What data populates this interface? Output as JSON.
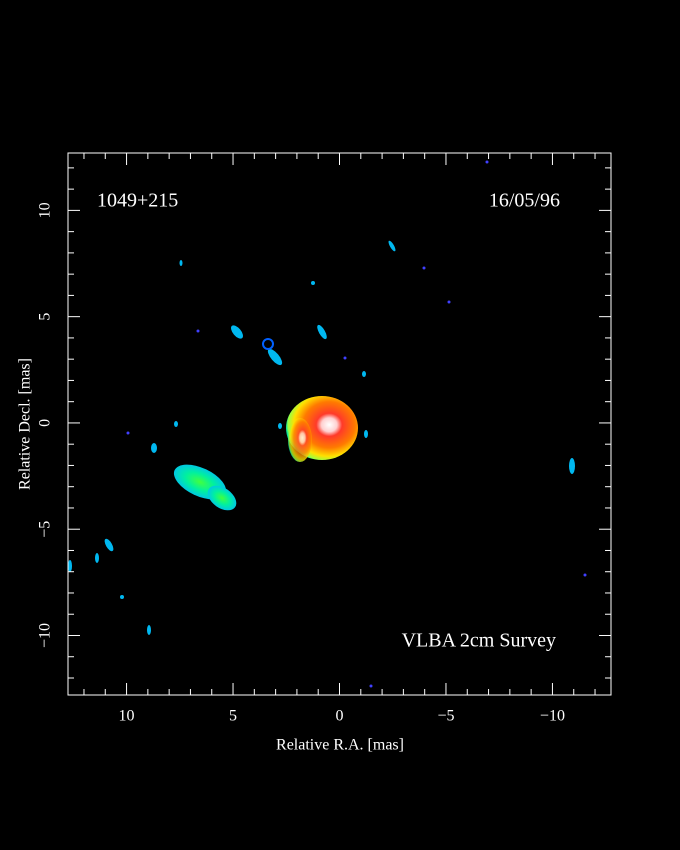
{
  "chart_data": {
    "type": "image",
    "xlabel": "Relative R.A. [mas]",
    "ylabel": "Relative Decl. [mas]",
    "annotations": {
      "source": "1049+215",
      "date": "16/05/96",
      "survey": "VLBA 2cm Survey"
    },
    "xlim": [
      12.75,
      -12.75
    ],
    "ylim": [
      -12.8,
      12.7
    ],
    "xticks": [
      10,
      5,
      0,
      {
        "value": -5,
        "label": "−5"
      },
      {
        "value": -10,
        "label": "−10"
      }
    ],
    "yticks": [
      {
        "value": -10,
        "label": "−10"
      },
      {
        "value": -5,
        "label": "−5"
      },
      0,
      5,
      10
    ],
    "xminorticks": [
      12,
      11,
      9,
      8,
      7,
      6,
      4,
      3,
      2,
      1,
      -1,
      -2,
      -3,
      -4,
      -6,
      -7,
      -8,
      -9,
      -11,
      -12
    ],
    "yminorticks": [
      -12,
      -11,
      -9,
      -8,
      -7,
      -6,
      -4,
      -3,
      -2,
      -1,
      1,
      2,
      3,
      4,
      6,
      7,
      8,
      9,
      11,
      12
    ]
  }
}
